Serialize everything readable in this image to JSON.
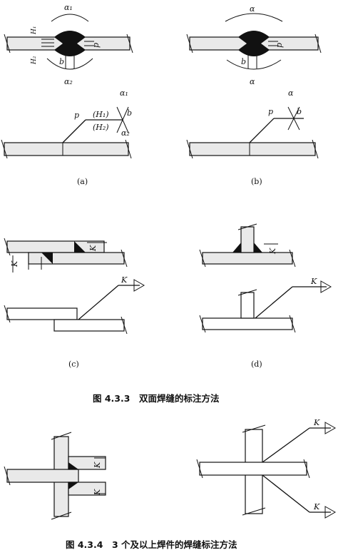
{
  "panel_a": {
    "symbol_alpha1": "α₁",
    "symbol_alpha2": "α₂",
    "symbol_H1": "H₁",
    "symbol_H2": "H₂",
    "symbol_b": "b",
    "symbol_p": "p",
    "leader_H1": "(H₁)",
    "leader_H2": "(H₂)",
    "label": "(a)"
  },
  "panel_b": {
    "symbol_alpha": "α",
    "symbol_b": "b",
    "symbol_p": "p",
    "label": "(b)"
  },
  "panel_c": {
    "symbol_K": "K",
    "label": "(c)"
  },
  "panel_d": {
    "symbol_K": "K",
    "label": "(d)"
  },
  "caption_433": "图 4.3.3　双面焊缝的标注方法",
  "panel_e": {
    "symbol_K": "K"
  },
  "caption_434": "图 4.3.4　3 个及以上焊件的焊缝标注方法"
}
